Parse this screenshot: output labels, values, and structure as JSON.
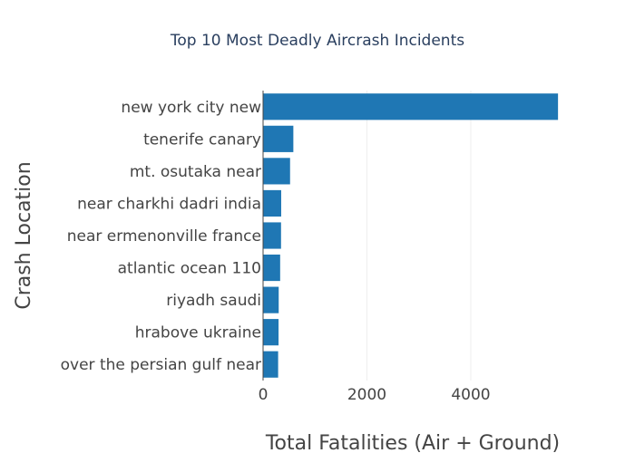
{
  "chart_data": {
    "type": "bar",
    "orientation": "horizontal",
    "title": "Top 10 Most Deadly Aircrash Incidents",
    "xlabel": "Total Fatalities (Air + Ground)",
    "ylabel": "Crash Location",
    "xlim": [
      0,
      5800
    ],
    "xticks": [
      0,
      2000,
      4000
    ],
    "xtick_labels": [
      "0",
      "2000",
      "4000"
    ],
    "grid": true,
    "bar_color": "#1f77b4",
    "categories": [
      "over the persian gulf near",
      "hrabove ukraine",
      "riyadh saudi",
      "atlantic ocean 110",
      "near ermenonville france",
      "near charkhi dadri india",
      "mt. osutaka near",
      "tenerife canary",
      "new york city new"
    ],
    "values": [
      290,
      298,
      301,
      329,
      346,
      349,
      520,
      583,
      5680
    ]
  }
}
